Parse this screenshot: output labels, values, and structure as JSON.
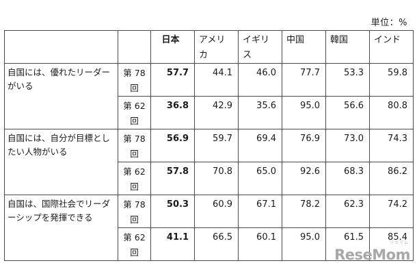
{
  "unit_note": "単位：%",
  "table": {
    "headers": [
      "日本",
      "アメリカ",
      "イギリス",
      "中国",
      "韓国",
      "インド"
    ],
    "groups": [
      {
        "question": "自国には、優れたリーダーがいる",
        "rows": [
          {
            "round": "第 78 回",
            "values": [
              "57.7",
              "44.1",
              "46.0",
              "77.7",
              "53.3",
              "59.8"
            ]
          },
          {
            "round": "第 62 回",
            "values": [
              "36.8",
              "42.9",
              "35.6",
              "95.0",
              "56.6",
              "80.8"
            ]
          }
        ]
      },
      {
        "question": "自国には、自分が目標としたい人物がいる",
        "rows": [
          {
            "round": "第 78 回",
            "values": [
              "56.9",
              "59.7",
              "69.4",
              "76.9",
              "73.0",
              "74.3"
            ]
          },
          {
            "round": "第 62 回",
            "values": [
              "57.8",
              "70.8",
              "65.0",
              "92.6",
              "68.3",
              "86.2"
            ]
          }
        ]
      },
      {
        "question": "自国は、国際社会でリーダーシップを発揮できる",
        "rows": [
          {
            "round": "第 78 回",
            "values": [
              "50.3",
              "60.9",
              "67.1",
              "78.2",
              "62.3",
              "74.2"
            ]
          },
          {
            "round": "第 62 回",
            "values": [
              "41.1",
              "66.5",
              "60.1",
              "95.0",
              "61.5",
              "85.4"
            ]
          }
        ]
      }
    ]
  },
  "watermark": {
    "logo_text": "ReseMom",
    "logo_sub": "リセマム"
  }
}
